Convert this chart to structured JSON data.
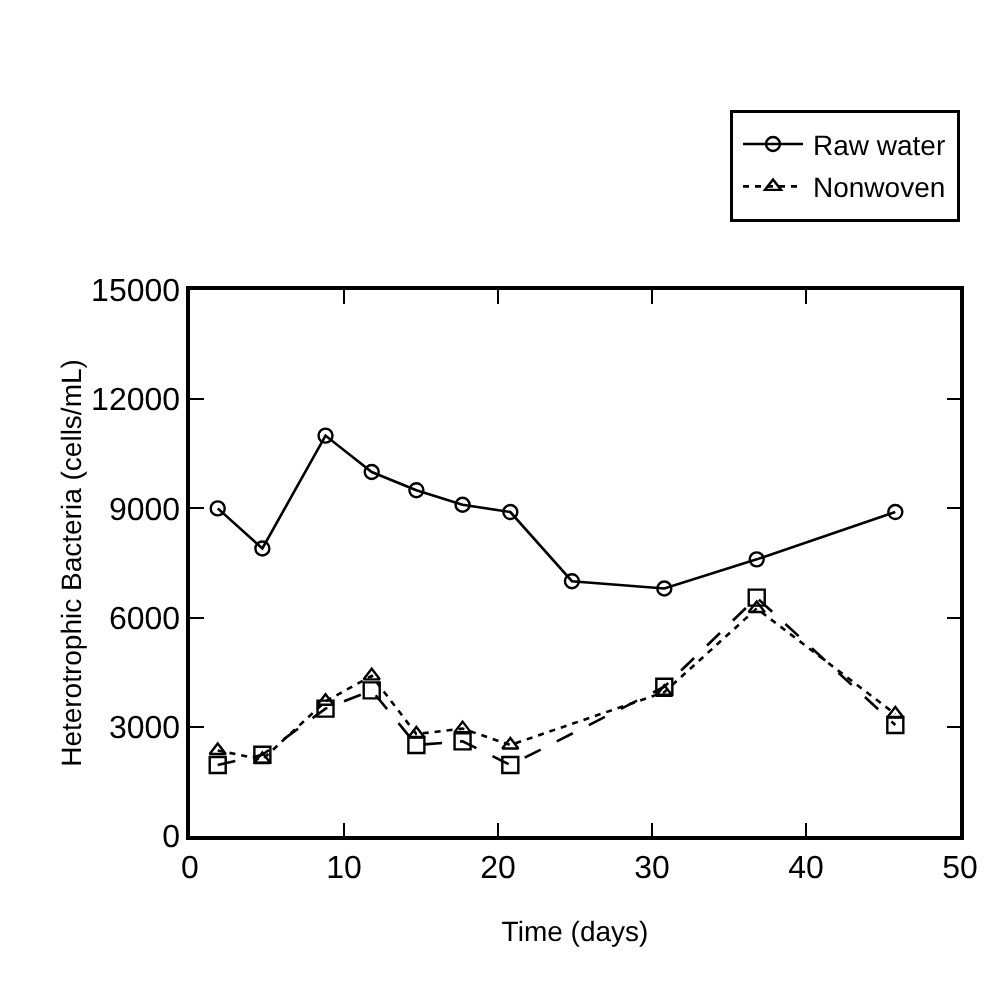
{
  "chart_data": {
    "type": "line",
    "xlabel": "Time (days)",
    "ylabel": "Heterotrophic Bacteria (cells/mL)",
    "xlim": [
      0,
      50
    ],
    "xticks": [
      0,
      10,
      20,
      30,
      40,
      50
    ],
    "ylim": [
      0,
      15000
    ],
    "yticks": [
      0,
      3000,
      6000,
      9000,
      12000,
      15000
    ],
    "grid": false,
    "legend": "top right",
    "series": [
      {
        "name": "Raw water",
        "color": "#000000",
        "marker": "circle",
        "line_style": "solid",
        "x": [
          1.8,
          4.7,
          8.8,
          11.8,
          14.7,
          17.7,
          20.8,
          24.8,
          30.8,
          36.8,
          45.8
        ],
        "values": [
          9000,
          7900,
          11000,
          10000,
          9500,
          9100,
          8900,
          7000,
          6800,
          7600,
          8900
        ]
      },
      {
        "color": "#000000",
        "marker": "square",
        "line_style": "dashed",
        "x": [
          1.8,
          4.7,
          8.8,
          11.8,
          14.7,
          17.7,
          20.8,
          30.8,
          36.8,
          45.8
        ],
        "values": [
          1950,
          2230,
          3500,
          4000,
          2500,
          2600,
          1950,
          4100,
          6550,
          3050
        ]
      },
      {
        "name": "Nonwoven",
        "color": "#000000",
        "marker": "triangle",
        "line_style": "dotted",
        "x": [
          1.8,
          4.7,
          8.8,
          11.8,
          14.7,
          17.7,
          20.8,
          30.8,
          36.8,
          45.8
        ],
        "values": [
          2350,
          2100,
          3700,
          4400,
          2800,
          2950,
          2500,
          3950,
          6250,
          3350
        ]
      }
    ]
  }
}
